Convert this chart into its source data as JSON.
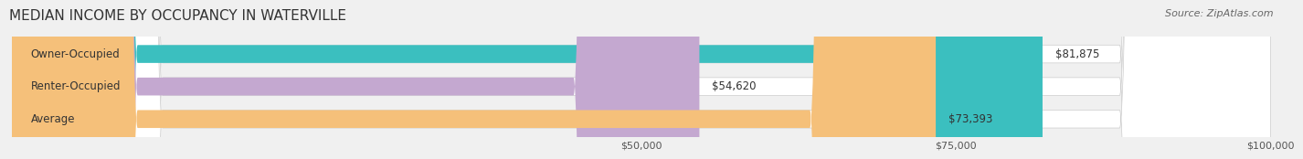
{
  "title": "MEDIAN INCOME BY OCCUPANCY IN WATERVILLE",
  "source": "Source: ZipAtlas.com",
  "categories": [
    "Owner-Occupied",
    "Renter-Occupied",
    "Average"
  ],
  "values": [
    81875,
    54620,
    73393
  ],
  "labels": [
    "$81,875",
    "$54,620",
    "$73,393"
  ],
  "bar_colors": [
    "#3bbfbf",
    "#c4a8d0",
    "#f5c07a"
  ],
  "bar_edge_colors": [
    "#2aa0a0",
    "#b090be",
    "#e8a85a"
  ],
  "xlim": [
    0,
    100000
  ],
  "xticks": [
    50000,
    75000,
    100000
  ],
  "xtick_labels": [
    "$50,000",
    "$75,000",
    "$100,000"
  ],
  "title_fontsize": 11,
  "source_fontsize": 8,
  "label_fontsize": 8.5,
  "cat_fontsize": 8.5,
  "tick_fontsize": 8,
  "background_color": "#f0f0f0",
  "bar_bg_color": "#e8e8e8",
  "bar_height": 0.55,
  "label_color": "#333333",
  "title_color": "#333333",
  "source_color": "#666666"
}
